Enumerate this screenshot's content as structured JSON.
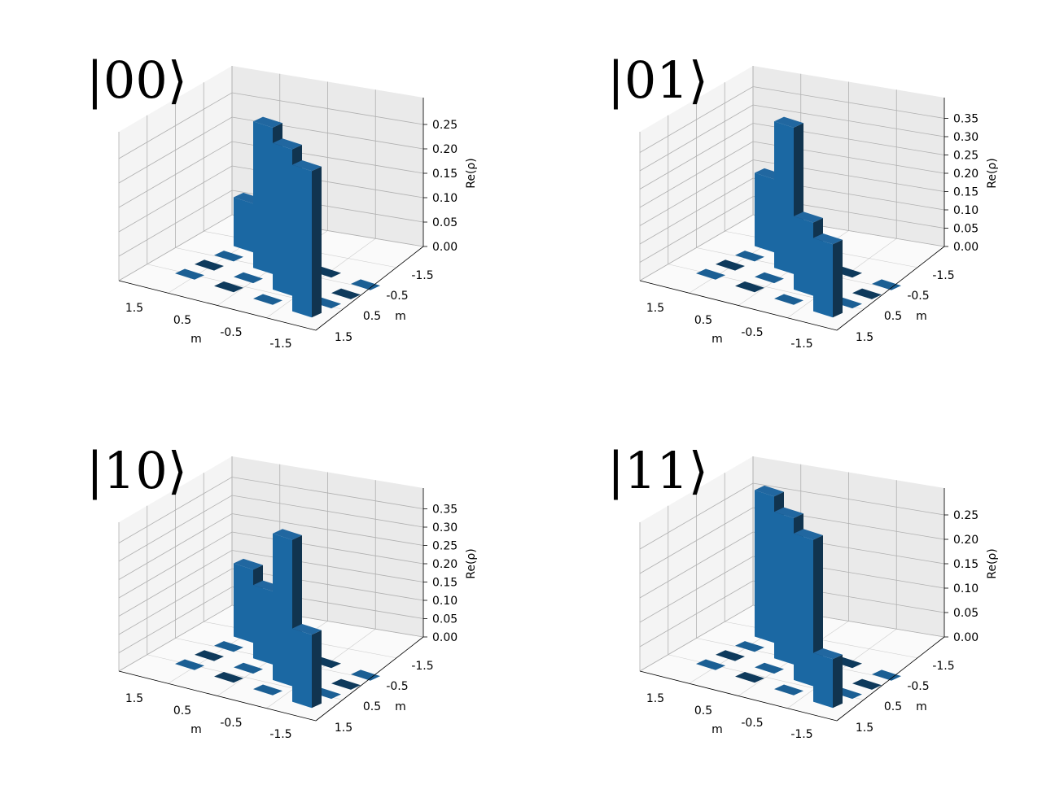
{
  "colors": {
    "bar_top": "#2167a0",
    "bar_front": "#1b68a3",
    "bar_side": "#11344f",
    "flat_light": "#1b5f94",
    "flat_dark": "#0e3a5c",
    "pane_left": "#f4f4f4",
    "pane_right": "#eaeaea",
    "pane_floor": "#fafafa",
    "grid": "#b0b0b0"
  },
  "chart_data": [
    {
      "type": "bar3d",
      "title": "|00⟩",
      "xlabel": "m",
      "ylabel": "m",
      "zlabel": "Re(ρ)",
      "xticks": [
        "1.5",
        "0.5",
        "-0.5",
        "-1.5"
      ],
      "yticks": [
        "-1.5",
        "-0.5",
        "0.5",
        "1.5"
      ],
      "zticks": [
        "0.00",
        "0.05",
        "0.10",
        "0.15",
        "0.20",
        "0.25"
      ],
      "zlim": [
        0,
        0.3
      ],
      "diagonal": [
        0.1,
        0.3,
        0.3,
        0.3
      ]
    },
    {
      "type": "bar3d",
      "title": "|01⟩",
      "xlabel": "m",
      "ylabel": "m",
      "zlabel": "Re(ρ)",
      "xticks": [
        "1.5",
        "0.5",
        "-0.5",
        "-1.5"
      ],
      "yticks": [
        "-1.5",
        "-0.5",
        "0.5",
        "1.5"
      ],
      "zticks": [
        "0.00",
        "0.05",
        "0.10",
        "0.15",
        "0.20",
        "0.25",
        "0.30",
        "0.35"
      ],
      "zlim": [
        0,
        0.4
      ],
      "diagonal": [
        0.2,
        0.4,
        0.2,
        0.2
      ]
    },
    {
      "type": "bar3d",
      "title": "|10⟩",
      "xlabel": "m",
      "ylabel": "m",
      "zlabel": "Re(ρ)",
      "xticks": [
        "1.5",
        "0.5",
        "-0.5",
        "-1.5"
      ],
      "yticks": [
        "-1.5",
        "-0.5",
        "0.5",
        "1.5"
      ],
      "zticks": [
        "0.00",
        "0.05",
        "0.10",
        "0.15",
        "0.20",
        "0.25",
        "0.30",
        "0.35"
      ],
      "zlim": [
        0,
        0.4
      ],
      "diagonal": [
        0.2,
        0.2,
        0.4,
        0.2
      ]
    },
    {
      "type": "bar3d",
      "title": "|11⟩",
      "xlabel": "m",
      "ylabel": "m",
      "zlabel": "Re(ρ)",
      "xticks": [
        "1.5",
        "0.5",
        "-0.5",
        "-1.5"
      ],
      "yticks": [
        "-1.5",
        "-0.5",
        "0.5",
        "1.5"
      ],
      "zticks": [
        "0.00",
        "0.05",
        "0.10",
        "0.15",
        "0.20",
        "0.25"
      ],
      "zlim": [
        0,
        0.3
      ],
      "diagonal": [
        0.3,
        0.3,
        0.3,
        0.1
      ]
    }
  ]
}
